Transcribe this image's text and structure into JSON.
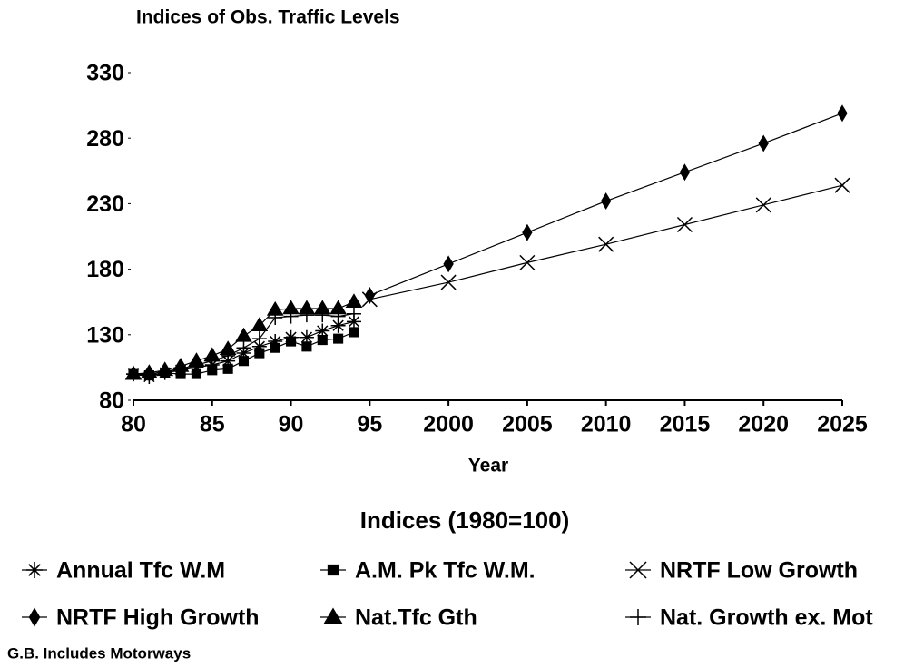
{
  "chart_data": {
    "type": "line",
    "title": "Indices of Obs. Traffic Levels",
    "x_label": "Year",
    "legend_title": "Indices (1980=100)",
    "note": "G.B. Includes Motorways",
    "xlim": [
      1980,
      2025
    ],
    "xticks": [
      {
        "value": 1980,
        "label": "80"
      },
      {
        "value": 1985,
        "label": "85"
      },
      {
        "value": 1990,
        "label": "90"
      },
      {
        "value": 1995,
        "label": "95"
      },
      2000,
      2005,
      2010,
      2015,
      2020,
      2025
    ],
    "ylim": [
      80,
      330
    ],
    "yticks": [
      80,
      130,
      180,
      230,
      280,
      330
    ],
    "series": [
      {
        "name": "Annual Tfc W.M",
        "marker": "asterisk",
        "color": "#000000",
        "x": [
          1980,
          1981,
          1982,
          1983,
          1984,
          1985,
          1986,
          1987,
          1988,
          1989,
          1990,
          1991,
          1992,
          1993,
          1994
        ],
        "values": [
          100,
          98,
          101,
          103,
          105,
          107,
          110,
          116,
          121,
          125,
          128,
          128,
          133,
          137,
          140
        ]
      },
      {
        "name": "A.M. Pk Tfc W.M.",
        "marker": "square",
        "color": "#000000",
        "x": [
          1980,
          1981,
          1982,
          1983,
          1984,
          1985,
          1986,
          1987,
          1988,
          1989,
          1990,
          1991,
          1992,
          1993,
          1994
        ],
        "values": [
          100,
          99,
          101,
          100,
          100,
          103,
          104,
          110,
          116,
          120,
          125,
          121,
          126,
          127,
          132
        ]
      },
      {
        "name": "NRTF Low Growth",
        "marker": "x",
        "color": "#000000",
        "x": [
          1995,
          2000,
          2005,
          2010,
          2015,
          2020,
          2025
        ],
        "values": [
          157,
          170,
          185,
          199,
          214,
          229,
          244
        ]
      },
      {
        "name": "NRTF High Growth",
        "marker": "diamond",
        "color": "#000000",
        "x": [
          1995,
          2000,
          2005,
          2010,
          2015,
          2020,
          2025
        ],
        "values": [
          160,
          184,
          208,
          232,
          254,
          276,
          299
        ]
      },
      {
        "name": "Nat.Tfc Gth",
        "marker": "triangle",
        "color": "#000000",
        "x": [
          1980,
          1981,
          1982,
          1983,
          1984,
          1985,
          1986,
          1987,
          1988,
          1989,
          1990,
          1991,
          1992,
          1993,
          1994
        ],
        "values": [
          100,
          101,
          103,
          106,
          110,
          114,
          119,
          129,
          137,
          149,
          150,
          150,
          150,
          150,
          155
        ]
      },
      {
        "name": "Nat. Growth ex. Mot",
        "marker": "plus",
        "color": "#000000",
        "x": [
          1980,
          1981,
          1982,
          1983,
          1984,
          1985,
          1986,
          1987,
          1988,
          1989,
          1990,
          1991,
          1992,
          1993,
          1994
        ],
        "values": [
          100,
          100,
          102,
          104,
          107,
          110,
          114,
          120,
          127,
          143,
          144,
          145,
          145,
          144,
          146
        ]
      }
    ]
  }
}
